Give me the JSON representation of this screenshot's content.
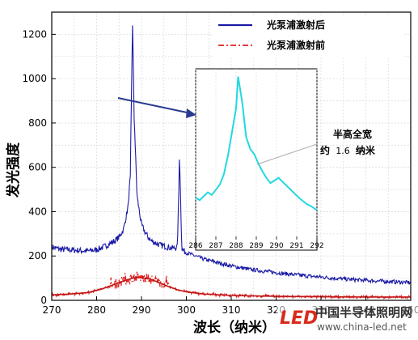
{
  "chart_data": {
    "type": "line",
    "ylabel": "发光强度",
    "xlabel": "波长（纳米）",
    "xlim": [
      270,
      350
    ],
    "ylim": [
      0,
      1300
    ],
    "xticks": [
      270,
      280,
      290,
      300,
      310,
      320,
      330,
      340,
      350
    ],
    "yticks": [
      0,
      200,
      400,
      600,
      800,
      1000,
      1200
    ],
    "grid": true,
    "legend_position": "top-right",
    "series": [
      {
        "name": "光泵浦激射后",
        "color": "#1a1aa6",
        "style": "solid",
        "points": [
          [
            270,
            240
          ],
          [
            272,
            230
          ],
          [
            274,
            228
          ],
          [
            276,
            225
          ],
          [
            278,
            222
          ],
          [
            280,
            228
          ],
          [
            282,
            245
          ],
          [
            284,
            268
          ],
          [
            285,
            285
          ],
          [
            286,
            320
          ],
          [
            287,
            420
          ],
          [
            287.5,
            560
          ],
          [
            288,
            1240
          ],
          [
            288.4,
            820
          ],
          [
            289,
            470
          ],
          [
            290,
            340
          ],
          [
            291,
            300
          ],
          [
            292,
            270
          ],
          [
            294,
            250
          ],
          [
            296,
            240
          ],
          [
            297,
            235
          ],
          [
            298,
            240
          ],
          [
            298.5,
            635
          ],
          [
            299,
            230
          ],
          [
            300,
            215
          ],
          [
            302,
            200
          ],
          [
            304,
            185
          ],
          [
            306,
            175
          ],
          [
            308,
            165
          ],
          [
            310,
            155
          ],
          [
            314,
            140
          ],
          [
            318,
            130
          ],
          [
            322,
            120
          ],
          [
            326,
            112
          ],
          [
            330,
            105
          ],
          [
            334,
            98
          ],
          [
            338,
            92
          ],
          [
            342,
            88
          ],
          [
            346,
            84
          ],
          [
            350,
            80
          ]
        ]
      },
      {
        "name": "光泵浦激射前",
        "color": "#e02020",
        "style": "dashdot",
        "points": [
          [
            270,
            25
          ],
          [
            274,
            28
          ],
          [
            278,
            35
          ],
          [
            281,
            50
          ],
          [
            284,
            72
          ],
          [
            286,
            88
          ],
          [
            288,
            100
          ],
          [
            289,
            103
          ],
          [
            290,
            102
          ],
          [
            292,
            95
          ],
          [
            294,
            80
          ],
          [
            296,
            62
          ],
          [
            298,
            48
          ],
          [
            300,
            38
          ],
          [
            304,
            28
          ],
          [
            310,
            22
          ],
          [
            320,
            18
          ],
          [
            330,
            16
          ],
          [
            340,
            15
          ],
          [
            350,
            15
          ]
        ]
      }
    ],
    "inset": {
      "xlim": [
        286,
        292
      ],
      "ylim": [
        0,
        1300
      ],
      "xticks": [
        286,
        287,
        288,
        289,
        290,
        291,
        292
      ],
      "color": "#22d8e0",
      "points": [
        [
          286,
          320
        ],
        [
          286.2,
          300
        ],
        [
          286.4,
          330
        ],
        [
          286.6,
          360
        ],
        [
          286.8,
          340
        ],
        [
          287,
          380
        ],
        [
          287.2,
          420
        ],
        [
          287.4,
          500
        ],
        [
          287.6,
          640
        ],
        [
          287.8,
          820
        ],
        [
          288,
          1000
        ],
        [
          288.1,
          1240
        ],
        [
          288.3,
          1050
        ],
        [
          288.5,
          780
        ],
        [
          288.7,
          690
        ],
        [
          288.9,
          650
        ],
        [
          289.1,
          580
        ],
        [
          289.3,
          520
        ],
        [
          289.5,
          470
        ],
        [
          289.7,
          430
        ],
        [
          289.9,
          450
        ],
        [
          290.1,
          470
        ],
        [
          290.3,
          440
        ],
        [
          290.5,
          410
        ],
        [
          290.7,
          380
        ],
        [
          290.9,
          350
        ],
        [
          291.1,
          320
        ],
        [
          291.3,
          295
        ],
        [
          291.5,
          270
        ],
        [
          291.7,
          255
        ],
        [
          291.9,
          235
        ],
        [
          292,
          225
        ]
      ]
    },
    "annotation": {
      "line1": "半高全宽",
      "line2_prefix": "约",
      "line2_value": "1.6",
      "line2_suffix": "纳米"
    }
  },
  "watermark": {
    "logo_text": "LED",
    "site_name": "中国半导体照明网",
    "url": "www.china-led.net",
    "logo_color": "#d92a1c"
  }
}
